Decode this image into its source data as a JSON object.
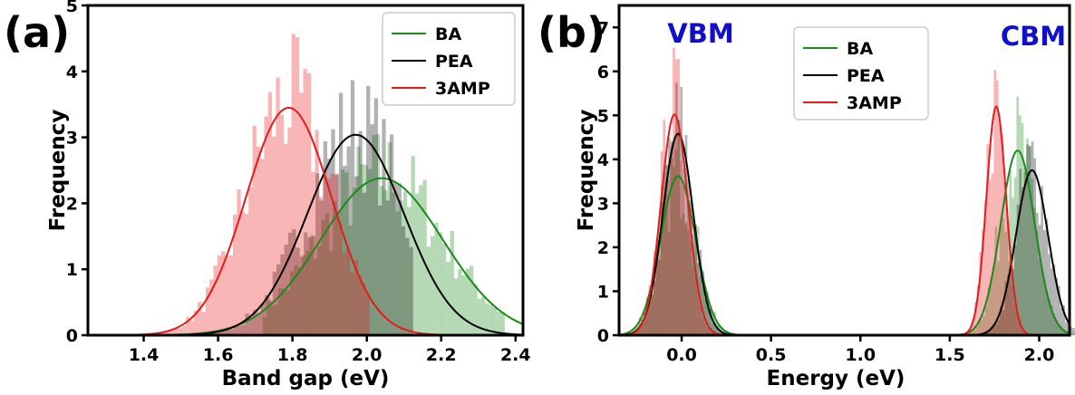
{
  "colors": {
    "BA": "#1a8a1a",
    "PEA": "#000000",
    "3AMP": "#e8191a",
    "annotation": "#1010c8"
  },
  "chart_data": [
    {
      "panel_label": "(a)",
      "type": "histogram",
      "xlabel": "Band gap (eV)",
      "ylabel": "Frequency",
      "xlim": [
        1.25,
        2.42
      ],
      "ylim": [
        0,
        5
      ],
      "xticks": [
        "1.4",
        "1.6",
        "1.8",
        "2.0",
        "2.2",
        "2.4"
      ],
      "yticks": [
        "0",
        "1",
        "2",
        "3",
        "4",
        "5"
      ],
      "legend": {
        "position": "top-right"
      },
      "series": [
        {
          "name": "BA",
          "color": "#1a8a1a",
          "fit": {
            "mean": 2.04,
            "peak": 2.38,
            "sigma": 0.165
          },
          "hist_range": [
            1.72,
            2.37
          ]
        },
        {
          "name": "PEA",
          "color": "#000000",
          "fit": {
            "mean": 1.97,
            "peak": 3.04,
            "sigma": 0.13
          },
          "hist_range": [
            1.4,
            2.12
          ]
        },
        {
          "name": "3AMP",
          "color": "#e8191a",
          "fit": {
            "mean": 1.79,
            "peak": 3.45,
            "sigma": 0.115
          },
          "hist_range": [
            1.43,
            2.0
          ]
        }
      ]
    },
    {
      "panel_label": "(b)",
      "type": "histogram",
      "xlabel": "Energy (eV)",
      "ylabel": "Frequency",
      "xlim": [
        -0.35,
        2.17
      ],
      "ylim": [
        0,
        7.5
      ],
      "xticks": [
        "0.0",
        "0.5",
        "1.0",
        "1.5",
        "2.0"
      ],
      "yticks": [
        "0",
        "1",
        "2",
        "3",
        "4",
        "5",
        "6",
        "7"
      ],
      "annotations": [
        "VBM",
        "CBM"
      ],
      "legend": {
        "position": "top-center"
      },
      "series": [
        {
          "name": "BA",
          "color": "#1a8a1a",
          "fits": [
            {
              "mean": -0.02,
              "peak": 3.62,
              "sigma": 0.098
            },
            {
              "mean": 1.88,
              "peak": 4.2,
              "sigma": 0.095
            }
          ]
        },
        {
          "name": "PEA",
          "color": "#000000",
          "fits": [
            {
              "mean": -0.02,
              "peak": 4.58,
              "sigma": 0.085
            },
            {
              "mean": 1.96,
              "peak": 3.75,
              "sigma": 0.09
            }
          ]
        },
        {
          "name": "3AMP",
          "color": "#e8191a",
          "fits": [
            {
              "mean": -0.04,
              "peak": 5.02,
              "sigma": 0.075
            },
            {
              "mean": 1.76,
              "peak": 5.2,
              "sigma": 0.055
            }
          ]
        }
      ]
    }
  ]
}
